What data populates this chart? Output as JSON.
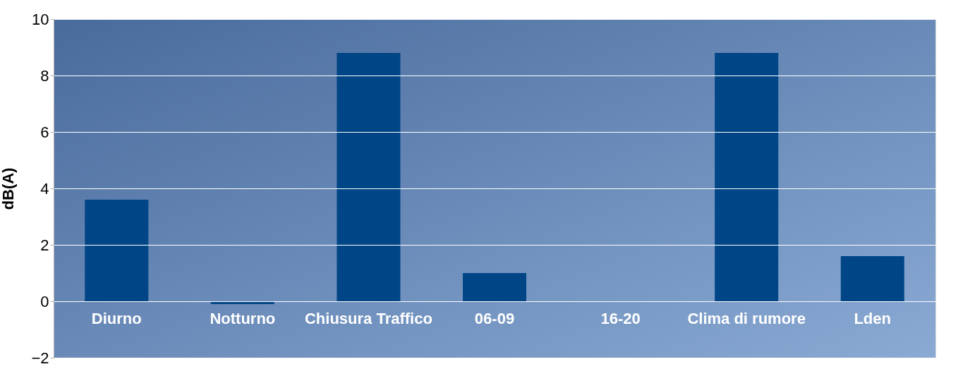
{
  "chart_data": {
    "type": "bar",
    "ylabel": "dB(A)",
    "categories": [
      "Diurno",
      "Notturno",
      "Chiusura Traffico",
      "06-09",
      "16-20",
      "Clima di rumore",
      "Lden"
    ],
    "values": [
      3.6,
      -0.1,
      8.8,
      1.0,
      0,
      8.8,
      1.6
    ],
    "color": "#004586",
    "ylim": [
      -2,
      10
    ],
    "yticks": [
      -2,
      0,
      2,
      4,
      6,
      8,
      10
    ],
    "grid": "y"
  }
}
